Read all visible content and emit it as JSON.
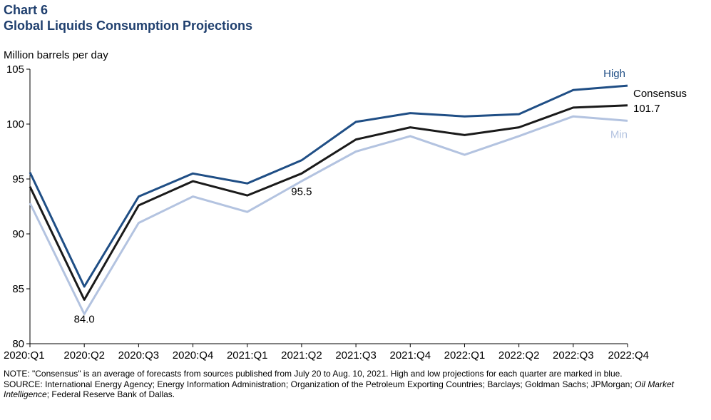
{
  "header": {
    "chart_number": "Chart 6",
    "title": "Global Liquids Consumption Projections"
  },
  "chart_data": {
    "type": "line",
    "title": "Global Liquids Consumption Projections",
    "ylabel": "Million barrels per day",
    "xlabel": "",
    "ylim": [
      80,
      105
    ],
    "yticks": [
      80,
      85,
      90,
      95,
      100,
      105
    ],
    "categories": [
      "2020:Q1",
      "2020:Q2",
      "2020:Q3",
      "2020:Q4",
      "2021:Q1",
      "2021:Q2",
      "2021:Q3",
      "2021:Q4",
      "2022:Q1",
      "2022:Q2",
      "2022:Q3",
      "2022:Q4"
    ],
    "series": [
      {
        "name": "High",
        "color": "#1f4e85",
        "values": [
          95.6,
          85.2,
          93.4,
          95.5,
          94.6,
          96.7,
          100.2,
          101.0,
          100.7,
          100.9,
          103.1,
          103.5
        ]
      },
      {
        "name": "Consensus",
        "color": "#1a1a1a",
        "values": [
          94.3,
          84.0,
          92.6,
          94.8,
          93.5,
          95.5,
          98.6,
          99.7,
          99.0,
          99.7,
          101.5,
          101.7
        ]
      },
      {
        "name": "Min",
        "color": "#b3c3e0",
        "values": [
          92.8,
          82.7,
          91.0,
          93.4,
          92.0,
          94.8,
          97.5,
          98.9,
          97.2,
          98.9,
          100.7,
          100.3
        ]
      }
    ],
    "legend": {
      "high_label": "High",
      "consensus_label": "Consensus",
      "consensus_value": "101.7",
      "min_label": "Min"
    },
    "annotations": [
      {
        "text": "84.0",
        "category": "2020:Q2"
      },
      {
        "text": "95.5",
        "category": "2021:Q2"
      }
    ]
  },
  "notes": {
    "note": "NOTE: \"Consensus\" is an average  of forecasts from sources published from July 20 to Aug. 10, 2021. High and low projections for each quarter are marked in blue.",
    "source_prefix": "SOURCE: International  Energy Agency; Energy Information  Administration; Organization of the Petroleum Exporting Countries; Barclays; Goldman Sachs; JPMorgan; ",
    "source_italic": "Oil Market Intelligence",
    "source_suffix": "; Federal Reserve  Bank of Dallas."
  }
}
